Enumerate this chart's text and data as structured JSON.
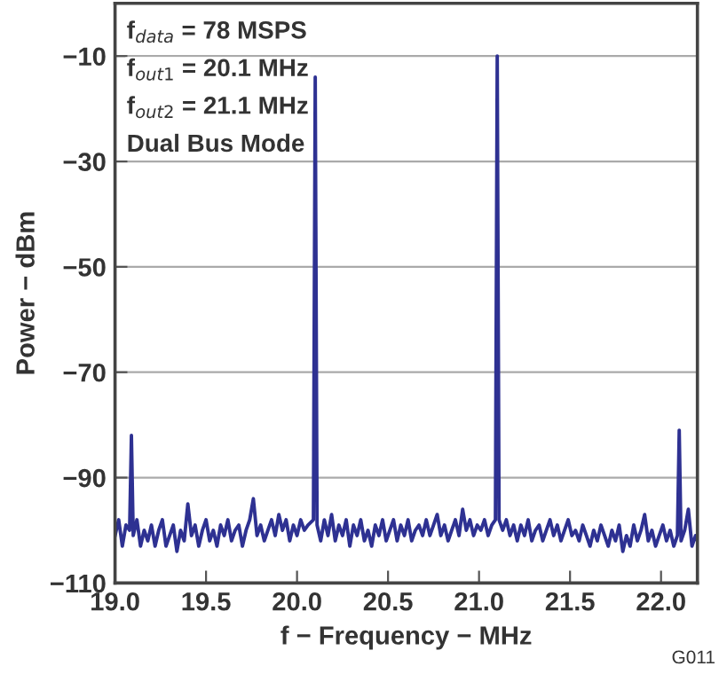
{
  "chart_data": {
    "type": "line",
    "xlabel": "f − Frequency − MHz",
    "ylabel": "Power − dBm",
    "annotations": [
      "f$_{data}$ = 78 MSPS",
      "f$_{out1}$ = 20.1 MHz",
      "f$_{out2}$ = 21.1 MHz",
      "Dual Bus Mode",
      "G011"
    ],
    "xlim": [
      19.0,
      22.2
    ],
    "xticks": [
      {
        "value": 19.0,
        "label": "19.0"
      },
      {
        "value": 19.5,
        "label": "19.5"
      },
      {
        "value": 20.0,
        "label": "20.0"
      },
      {
        "value": 20.5,
        "label": "20.5"
      },
      {
        "value": 21.0,
        "label": "21.0"
      },
      {
        "value": 21.5,
        "label": "21.5"
      },
      {
        "value": 22.0,
        "label": "22.0"
      }
    ],
    "ylim": [
      -110,
      0
    ],
    "yticks": [
      -110,
      -90,
      -70,
      -50,
      -30,
      -10
    ],
    "grid": "y",
    "legend": false,
    "marker": "none",
    "line_style": "solid",
    "series": [
      {
        "color": "#2e3192",
        "x": [
          19.0,
          19.02,
          19.04,
          19.06,
          19.08,
          19.09,
          19.1,
          19.12,
          19.14,
          19.16,
          19.18,
          19.2,
          19.22,
          19.24,
          19.26,
          19.28,
          19.3,
          19.32,
          19.34,
          19.36,
          19.38,
          19.4,
          19.42,
          19.44,
          19.46,
          19.48,
          19.5,
          19.52,
          19.54,
          19.56,
          19.58,
          19.6,
          19.62,
          19.64,
          19.66,
          19.68,
          19.7,
          19.72,
          19.74,
          19.76,
          19.78,
          19.8,
          19.82,
          19.84,
          19.86,
          19.88,
          19.9,
          19.92,
          19.94,
          19.96,
          19.98,
          20.0,
          20.02,
          20.04,
          20.06,
          20.09,
          20.1,
          20.11,
          20.13,
          20.15,
          20.17,
          20.19,
          20.21,
          20.23,
          20.25,
          20.27,
          20.29,
          20.31,
          20.33,
          20.35,
          20.37,
          20.39,
          20.41,
          20.43,
          20.45,
          20.47,
          20.49,
          20.51,
          20.53,
          20.55,
          20.57,
          20.59,
          20.61,
          20.63,
          20.65,
          20.67,
          20.69,
          20.71,
          20.73,
          20.75,
          20.77,
          20.79,
          20.81,
          20.83,
          20.85,
          20.87,
          20.89,
          20.91,
          20.93,
          20.95,
          20.97,
          20.99,
          21.01,
          21.03,
          21.05,
          21.07,
          21.09,
          21.1,
          21.11,
          21.13,
          21.15,
          21.17,
          21.19,
          21.21,
          21.23,
          21.25,
          21.27,
          21.29,
          21.31,
          21.33,
          21.35,
          21.37,
          21.39,
          21.41,
          21.43,
          21.45,
          21.47,
          21.49,
          21.51,
          21.53,
          21.55,
          21.57,
          21.59,
          21.61,
          21.63,
          21.65,
          21.67,
          21.69,
          21.71,
          21.73,
          21.75,
          21.77,
          21.79,
          21.81,
          21.83,
          21.85,
          21.87,
          21.89,
          21.91,
          21.93,
          21.95,
          21.97,
          21.99,
          22.01,
          22.03,
          22.05,
          22.07,
          22.09,
          22.1,
          22.11,
          22.13,
          22.15,
          22.17,
          22.19,
          22.2
        ],
        "values": [
          -101,
          -98,
          -103,
          -99,
          -100,
          -82,
          -101,
          -98,
          -103,
          -100,
          -102,
          -99,
          -103,
          -100,
          -98,
          -103,
          -101,
          -99,
          -104,
          -100,
          -102,
          -95,
          -101,
          -99,
          -103,
          -100,
          -98,
          -102,
          -100,
          -103,
          -99,
          -101,
          -98,
          -102,
          -100,
          -99,
          -103,
          -100,
          -98,
          -94,
          -101,
          -99,
          -102,
          -100,
          -98,
          -101,
          -97,
          -100,
          -98,
          -102,
          -99,
          -101,
          -98,
          -100,
          -99,
          -98,
          -14,
          -99,
          -102,
          -98,
          -101,
          -97,
          -102,
          -99,
          -101,
          -98,
          -103,
          -99,
          -101,
          -98,
          -102,
          -100,
          -103,
          -99,
          -101,
          -98,
          -102,
          -100,
          -98,
          -102,
          -99,
          -101,
          -98,
          -102,
          -100,
          -99,
          -101,
          -98,
          -101,
          -99,
          -97,
          -101,
          -99,
          -102,
          -100,
          -98,
          -101,
          -96,
          -100,
          -98,
          -101,
          -99,
          -100,
          -98,
          -101,
          -99,
          -98,
          -10,
          -98,
          -100,
          -98,
          -101,
          -99,
          -102,
          -99,
          -101,
          -98,
          -102,
          -100,
          -99,
          -102,
          -100,
          -98,
          -101,
          -99,
          -102,
          -100,
          -98,
          -101,
          -100,
          -102,
          -99,
          -101,
          -103,
          -100,
          -102,
          -99,
          -101,
          -103,
          -100,
          -102,
          -99,
          -104,
          -101,
          -103,
          -99,
          -102,
          -100,
          -97,
          -102,
          -100,
          -103,
          -101,
          -99,
          -102,
          -100,
          -103,
          -101,
          -81,
          -102,
          -100,
          -96,
          -103,
          -101,
          -102
        ]
      }
    ]
  }
}
